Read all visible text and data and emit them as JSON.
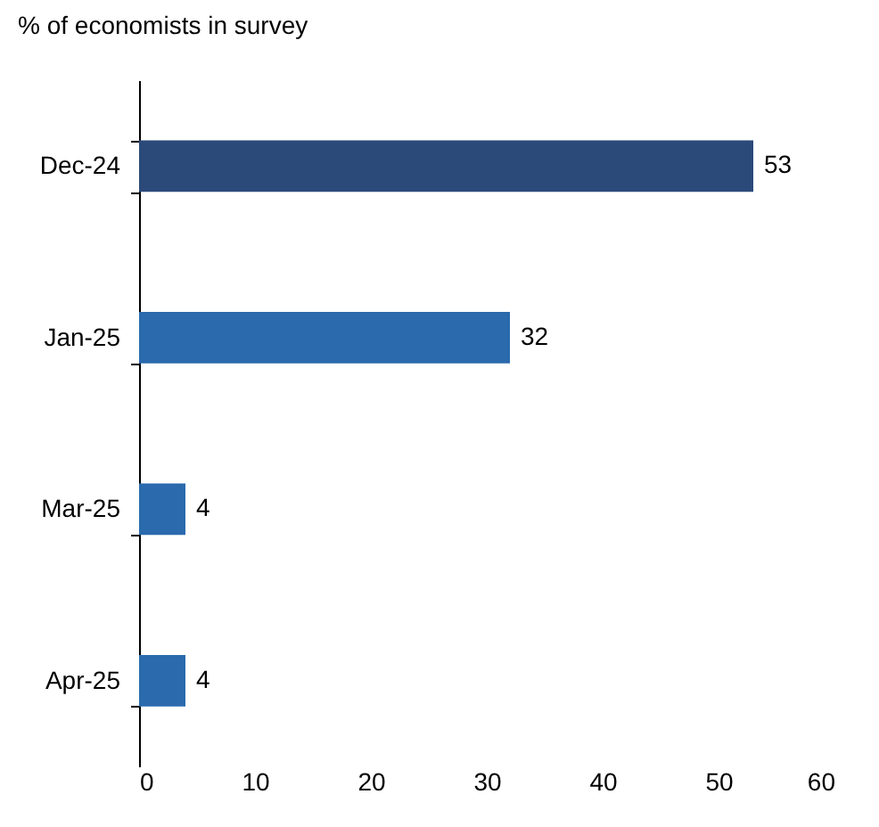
{
  "chart_data": {
    "type": "bar",
    "orientation": "horizontal",
    "title": "% of economists in survey",
    "categories": [
      "Dec-24",
      "Jan-25",
      "Mar-25",
      "Apr-25"
    ],
    "values": [
      53,
      32,
      4,
      4
    ],
    "colors": [
      "#2b4a7a",
      "#2a6aad",
      "#2a6aad",
      "#2a6aad"
    ],
    "xlim": [
      0,
      60
    ],
    "xticks": [
      0,
      10,
      20,
      30,
      40,
      50,
      60
    ],
    "data_labels": true
  }
}
